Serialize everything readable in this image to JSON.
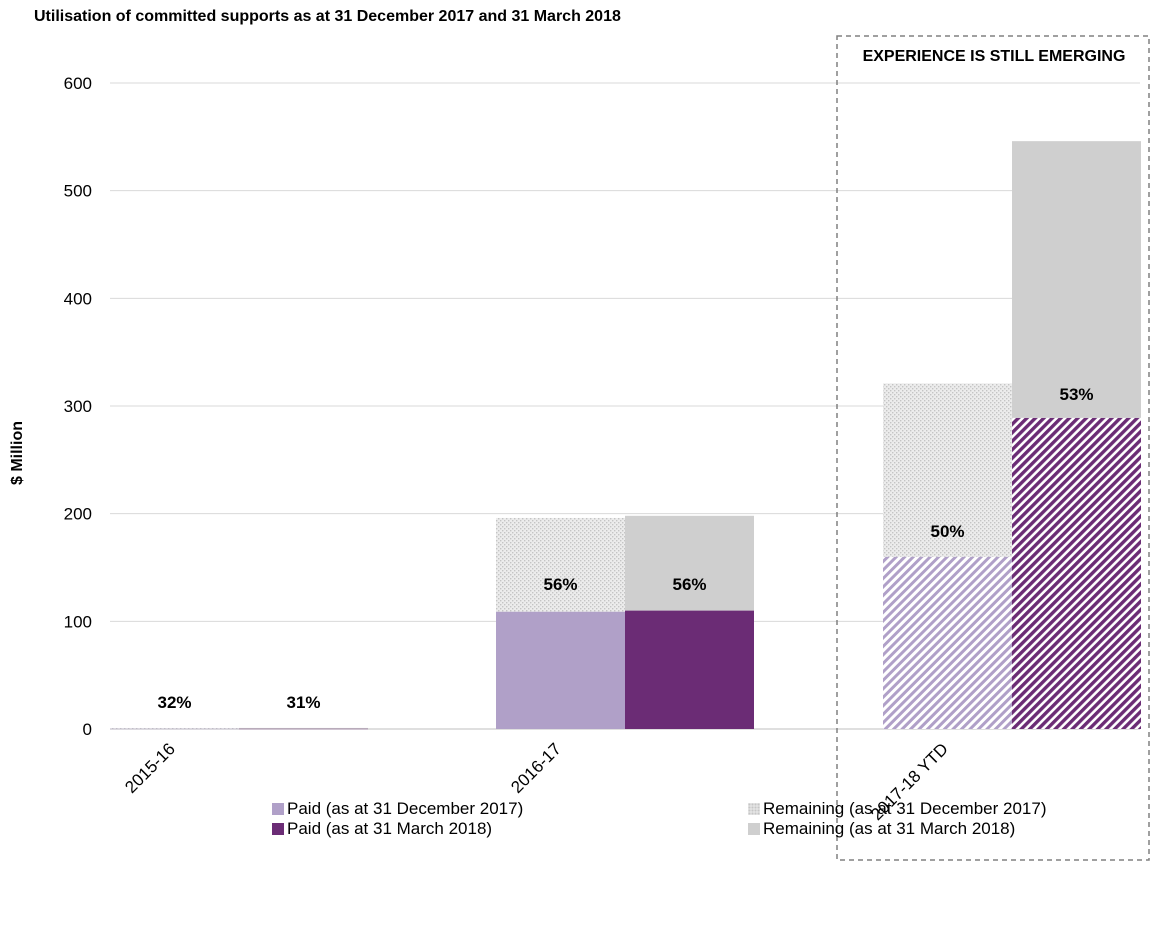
{
  "chart_data": {
    "type": "bar",
    "title": "Utilisation of committed supports as at 31 December 2017 and 31 March 2018",
    "ylabel": "$ Million",
    "xlabel": "",
    "ylim": [
      0,
      600
    ],
    "yticks": [
      0,
      100,
      200,
      300,
      400,
      500,
      600
    ],
    "grid": true,
    "categories": [
      "2015-16",
      "2016-17",
      "2017-18 YTD"
    ],
    "annotation": "EXPERIENCE IS STILL EMERGING",
    "series": [
      {
        "name": "Paid (as at 31 December 2017)",
        "values": [
          0.3,
          109,
          160
        ]
      },
      {
        "name": "Remaining (as at 31 December 2017)",
        "values": [
          0.6,
          87,
          161
        ]
      },
      {
        "name": "Paid (as at 31 March 2018)",
        "values": [
          0.3,
          110,
          289
        ]
      },
      {
        "name": "Remaining (as at 31 March 2018)",
        "values": [
          0.7,
          88,
          257
        ]
      }
    ],
    "data_labels": {
      "dec_2017": [
        "32%",
        "56%",
        "50%"
      ],
      "mar_2018": [
        "31%",
        "56%",
        "53%"
      ]
    },
    "legend_position": "bottom",
    "colors": {
      "paid_dec": "#b0a0c8",
      "paid_mar": "#6b2c75",
      "remaining_dec": "#d9d9d9",
      "remaining_mar": "#cfcfcf",
      "annotation_border": "#808080"
    }
  }
}
